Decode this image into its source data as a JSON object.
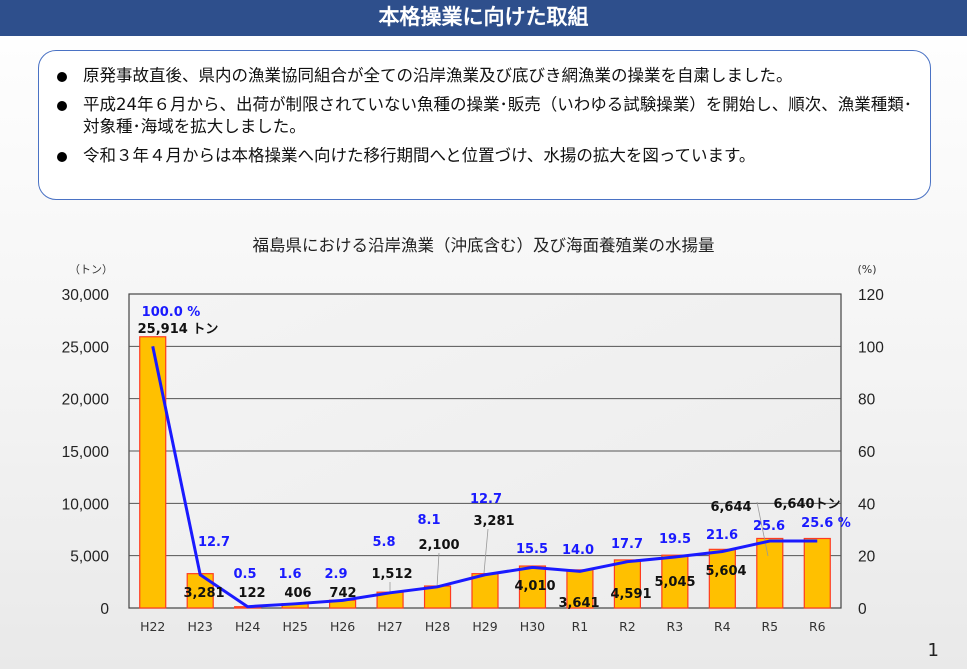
{
  "header": {
    "title": "本格操業に向けた取組"
  },
  "notes": [
    "原発事故直後、県内の漁業協同組合が全ての沿岸漁業及び底びき網漁業の操業を自粛しました。",
    "平成24年６月から、出荷が制限されていない魚種の操業･販売（いわゆる試験操業）を開始し、順次、漁業種類･対象種･海域を拡大しました。",
    "令和３年４月からは本格操業へ向けた移行期間へと位置づけ、水揚の拡大を図っています。"
  ],
  "page_number": "1",
  "chart_data": {
    "type": "bar+line",
    "title": "福島県における沿岸漁業（沖底含む）及び海面養殖業の水揚量",
    "y_left_unit": "（トン）",
    "y_right_unit": "(%)",
    "ylim_left": [
      0,
      30000
    ],
    "ylim_right": [
      0,
      120
    ],
    "y_left_ticks": [
      "0",
      "5,000",
      "10,000",
      "15,000",
      "20,000",
      "25,000",
      "30,000"
    ],
    "y_right_ticks": [
      "0",
      "20",
      "40",
      "60",
      "80",
      "100",
      "120"
    ],
    "grid": true,
    "categories": [
      "H22",
      "H23",
      "H24",
      "H25",
      "H26",
      "H27",
      "H28",
      "H29",
      "H30",
      "R1",
      "R2",
      "R3",
      "R4",
      "R5",
      "R6"
    ],
    "series": [
      {
        "type": "bar",
        "values": [
          25914,
          3281,
          122,
          406,
          742,
          1512,
          2100,
          3281,
          4010,
          3641,
          4591,
          5045,
          5604,
          6644,
          6640
        ],
        "labels": [
          "25,914 トン",
          "3,281",
          "122",
          "406",
          "742",
          "1,512",
          "2,100",
          "3,281",
          "4,010",
          "3,641",
          "4,591",
          "5,045",
          "5,604",
          "6,644",
          "6,640トン"
        ],
        "color": "#ffc000",
        "edge_color": "#ff3b1f"
      },
      {
        "type": "line",
        "axis": "right",
        "values": [
          100.0,
          12.7,
          0.5,
          1.6,
          2.9,
          5.8,
          8.1,
          12.7,
          15.5,
          14.0,
          17.7,
          19.5,
          21.6,
          25.6,
          25.6
        ],
        "labels": [
          "100.0 %",
          "12.7",
          "0.5",
          "1.6",
          "2.9",
          "5.8",
          "8.1",
          "12.7",
          "15.5",
          "14.0",
          "17.7",
          "19.5",
          "21.6",
          "25.6",
          "25.6 %"
        ],
        "color": "#1a1aff"
      }
    ]
  }
}
